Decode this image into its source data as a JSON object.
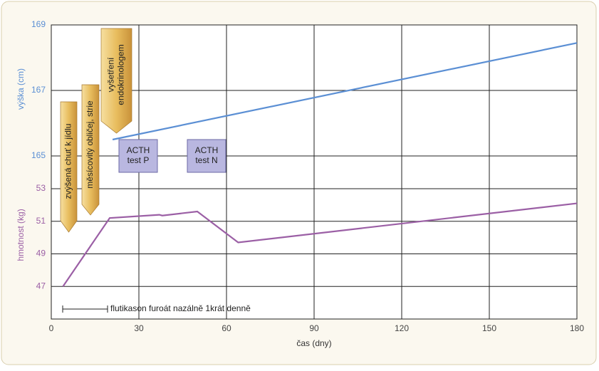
{
  "chart_data": [
    {
      "type": "line",
      "ylabel": "výška (cm)",
      "xlim": [
        0,
        180
      ],
      "ylim": [
        164,
        169
      ],
      "yticks": [
        165,
        167,
        169
      ],
      "x": [
        21,
        180
      ],
      "values": [
        165.5,
        168.45
      ],
      "color": "#5b8fd4",
      "annotations": [
        [
          "zvýšená chuť k jídlu"
        ],
        [
          "měsícovitý obličej, strie"
        ],
        [
          "vyšetření",
          "endokrinologem"
        ],
        [
          "ACTH",
          "test P"
        ],
        [
          "ACTH",
          "test N"
        ]
      ]
    },
    {
      "type": "line",
      "ylabel": "hmotnost (kg)",
      "xlabel": "čas (dny)",
      "xlim": [
        0,
        180
      ],
      "xticks": [
        0,
        30,
        60,
        90,
        120,
        150,
        180
      ],
      "ylim": [
        45,
        53
      ],
      "yticks": [
        47,
        49,
        51,
        53
      ],
      "x": [
        4,
        20,
        37,
        38,
        50,
        64,
        180
      ],
      "values": [
        47,
        51.2,
        51.4,
        51.35,
        51.6,
        49.7,
        52.1
      ],
      "color": "#9b5fa5",
      "annotations": [
        [
          "flutikason furoát nazálně 1krát denně"
        ]
      ]
    }
  ]
}
